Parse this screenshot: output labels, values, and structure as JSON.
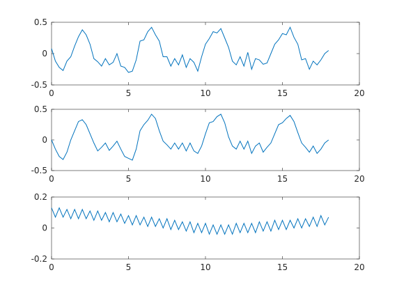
{
  "chart_data": [
    {
      "type": "line",
      "color": "#0072bd",
      "xlim": [
        0,
        20
      ],
      "xticks": [
        0,
        5,
        10,
        15,
        20
      ],
      "ylim": [
        -0.5,
        0.5
      ],
      "yticks": [
        -0.5,
        0,
        0.5
      ],
      "x": [
        0,
        0.25,
        0.5,
        0.75,
        1,
        1.25,
        1.5,
        1.75,
        2,
        2.25,
        2.5,
        2.75,
        3,
        3.25,
        3.5,
        3.75,
        4,
        4.25,
        4.5,
        4.75,
        5,
        5.25,
        5.5,
        5.75,
        6,
        6.25,
        6.5,
        6.75,
        7,
        7.25,
        7.5,
        7.75,
        8,
        8.25,
        8.5,
        8.75,
        9,
        9.25,
        9.5,
        9.75,
        10,
        10.25,
        10.5,
        10.75,
        11,
        11.25,
        11.5,
        11.75,
        12,
        12.25,
        12.5,
        12.75,
        13,
        13.25,
        13.5,
        13.75,
        14,
        14.25,
        14.5,
        14.75,
        15,
        15.25,
        15.5,
        15.75,
        16,
        16.25,
        16.5,
        16.75,
        17,
        17.25,
        17.5,
        17.75,
        18
      ],
      "values": [
        0.08,
        -0.12,
        -0.22,
        -0.27,
        -0.12,
        -0.05,
        0.12,
        0.27,
        0.38,
        0.3,
        0.15,
        -0.08,
        -0.13,
        -0.2,
        -0.08,
        -0.18,
        -0.14,
        0.0,
        -0.2,
        -0.22,
        -0.3,
        -0.28,
        -0.1,
        0.2,
        0.22,
        0.35,
        0.42,
        0.3,
        0.2,
        -0.05,
        -0.05,
        -0.2,
        -0.08,
        -0.18,
        -0.02,
        -0.22,
        -0.08,
        -0.14,
        -0.28,
        -0.05,
        0.15,
        0.24,
        0.35,
        0.33,
        0.4,
        0.25,
        0.1,
        -0.12,
        -0.18,
        -0.05,
        -0.2,
        0.02,
        -0.25,
        -0.08,
        -0.1,
        -0.17,
        -0.15,
        0.0,
        0.15,
        0.22,
        0.32,
        0.3,
        0.42,
        0.26,
        0.15,
        -0.1,
        -0.08,
        -0.25,
        -0.12,
        -0.18,
        -0.1,
        0.0,
        0.05
      ]
    },
    {
      "type": "line",
      "color": "#0072bd",
      "xlim": [
        0,
        20
      ],
      "xticks": [
        0,
        5,
        10,
        15,
        20
      ],
      "ylim": [
        -0.5,
        0.5
      ],
      "yticks": [
        -0.5,
        0,
        0.5
      ],
      "x": [
        0,
        0.25,
        0.5,
        0.75,
        1,
        1.25,
        1.5,
        1.75,
        2,
        2.25,
        2.5,
        2.75,
        3,
        3.25,
        3.5,
        3.75,
        4,
        4.25,
        4.5,
        4.75,
        5,
        5.25,
        5.5,
        5.75,
        6,
        6.25,
        6.5,
        6.75,
        7,
        7.25,
        7.5,
        7.75,
        8,
        8.25,
        8.5,
        8.75,
        9,
        9.25,
        9.5,
        9.75,
        10,
        10.25,
        10.5,
        10.75,
        11,
        11.25,
        11.5,
        11.75,
        12,
        12.25,
        12.5,
        12.75,
        13,
        13.25,
        13.5,
        13.75,
        14,
        14.25,
        14.5,
        14.75,
        15,
        15.25,
        15.5,
        15.75,
        16,
        16.25,
        16.5,
        16.75,
        17,
        17.25,
        17.5,
        17.75,
        18
      ],
      "values": [
        0.0,
        -0.15,
        -0.27,
        -0.32,
        -0.2,
        0.0,
        0.15,
        0.3,
        0.33,
        0.25,
        0.1,
        -0.05,
        -0.18,
        -0.12,
        -0.05,
        -0.17,
        -0.1,
        -0.02,
        -0.15,
        -0.27,
        -0.3,
        -0.33,
        -0.15,
        0.15,
        0.25,
        0.32,
        0.42,
        0.35,
        0.15,
        -0.02,
        -0.08,
        -0.15,
        -0.05,
        -0.15,
        -0.05,
        -0.18,
        -0.05,
        -0.18,
        -0.22,
        -0.1,
        0.1,
        0.28,
        0.3,
        0.38,
        0.42,
        0.28,
        0.05,
        -0.1,
        -0.15,
        -0.02,
        -0.15,
        -0.02,
        -0.22,
        -0.1,
        -0.05,
        -0.2,
        -0.12,
        -0.05,
        0.1,
        0.25,
        0.28,
        0.35,
        0.4,
        0.3,
        0.12,
        -0.05,
        -0.12,
        -0.2,
        -0.1,
        -0.22,
        -0.15,
        -0.05,
        0.0
      ]
    },
    {
      "type": "line",
      "color": "#0072bd",
      "xlim": [
        0,
        20
      ],
      "xticks": [
        0,
        5,
        10,
        15,
        20
      ],
      "ylim": [
        -0.2,
        0.2
      ],
      "yticks": [
        -0.2,
        0,
        0.2
      ],
      "x": [
        0,
        0.25,
        0.5,
        0.75,
        1,
        1.25,
        1.5,
        1.75,
        2,
        2.25,
        2.5,
        2.75,
        3,
        3.25,
        3.5,
        3.75,
        4,
        4.25,
        4.5,
        4.75,
        5,
        5.25,
        5.5,
        5.75,
        6,
        6.25,
        6.5,
        6.75,
        7,
        7.25,
        7.5,
        7.75,
        8,
        8.25,
        8.5,
        8.75,
        9,
        9.25,
        9.5,
        9.75,
        10,
        10.25,
        10.5,
        10.75,
        11,
        11.25,
        11.5,
        11.75,
        12,
        12.25,
        12.5,
        12.75,
        13,
        13.25,
        13.5,
        13.75,
        14,
        14.25,
        14.5,
        14.75,
        15,
        15.25,
        15.5,
        15.75,
        16,
        16.25,
        16.5,
        16.75,
        17,
        17.25,
        17.5,
        17.75,
        18
      ],
      "values": [
        0.13,
        0.07,
        0.13,
        0.07,
        0.12,
        0.06,
        0.12,
        0.06,
        0.12,
        0.06,
        0.11,
        0.05,
        0.11,
        0.05,
        0.1,
        0.04,
        0.1,
        0.04,
        0.09,
        0.03,
        0.08,
        0.02,
        0.08,
        0.02,
        0.07,
        0.01,
        0.07,
        0.01,
        0.06,
        0.0,
        0.06,
        -0.01,
        0.05,
        -0.01,
        0.04,
        -0.02,
        0.04,
        -0.03,
        0.03,
        -0.03,
        0.03,
        -0.04,
        0.02,
        -0.04,
        0.02,
        -0.04,
        0.02,
        -0.04,
        0.03,
        -0.03,
        0.03,
        -0.03,
        0.03,
        -0.03,
        0.04,
        -0.02,
        0.04,
        -0.02,
        0.05,
        -0.01,
        0.05,
        -0.01,
        0.05,
        0.0,
        0.06,
        0.0,
        0.06,
        0.01,
        0.07,
        0.01,
        0.08,
        0.02,
        0.07
      ]
    }
  ]
}
